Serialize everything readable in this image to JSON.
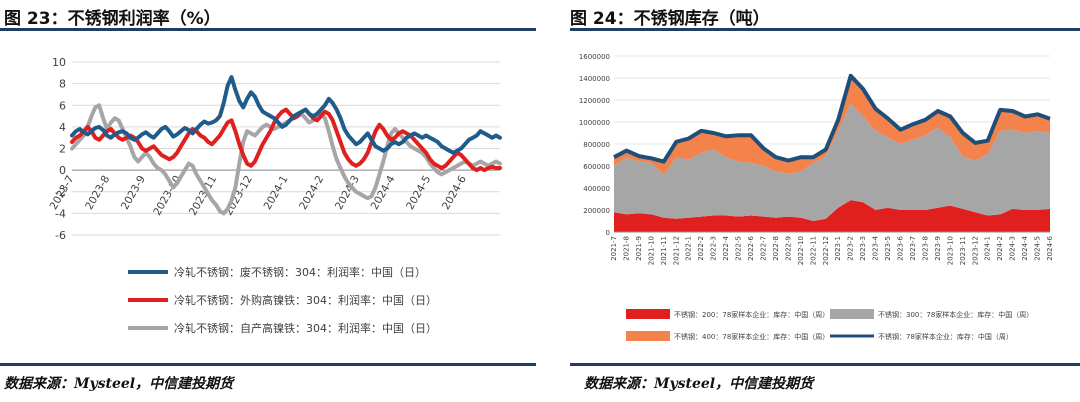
{
  "left": {
    "figure_title": "图 23：不锈钢利润率（%）",
    "source": "数据来源：Mysteel，中信建投期货"
  },
  "right": {
    "figure_title": "图 24：不锈钢库存（吨）",
    "source": "数据来源：Mysteel，中信建投期货"
  },
  "chart_data": [
    {
      "type": "line",
      "title": "",
      "ylim": [
        -6,
        10
      ],
      "yticks": [
        -6,
        -4,
        -2,
        0,
        2,
        4,
        6,
        8,
        10
      ],
      "xticks": [
        "2023-7",
        "2023-8",
        "2023-9",
        "2023-10",
        "2023-11",
        "2023-12",
        "2024-1",
        "2024-2",
        "2024-3",
        "2024-4",
        "2024-5",
        "2024-6"
      ],
      "grid": true,
      "legend_position": "bottom",
      "series": [
        {
          "name": "冷轧不锈钢：废不锈钢：304：利润率：中国（日）",
          "color": "#1f5c8b",
          "values": [
            3.2,
            3.6,
            3.8,
            3.5,
            3.3,
            3.6,
            3.9,
            4.0,
            3.7,
            3.2,
            3.0,
            3.3,
            3.5,
            3.6,
            3.4,
            3.0,
            2.8,
            3.0,
            3.3,
            3.5,
            3.2,
            3.0,
            3.4,
            3.8,
            4.0,
            3.6,
            3.1,
            3.3,
            3.6,
            3.9,
            3.7,
            3.4,
            3.8,
            4.2,
            4.5,
            4.3,
            4.4,
            4.6,
            5.0,
            6.2,
            7.8,
            8.6,
            7.4,
            6.4,
            5.8,
            6.6,
            7.2,
            6.8,
            6.0,
            5.4,
            5.2,
            5.0,
            4.8,
            4.4,
            4.0,
            4.2,
            4.6,
            5.0,
            5.2,
            5.4,
            5.6,
            5.2,
            5.0,
            5.2,
            5.6,
            6.0,
            6.6,
            6.2,
            5.6,
            4.8,
            3.8,
            3.2,
            2.8,
            2.4,
            2.6,
            3.0,
            3.4,
            2.8,
            2.2,
            2.0,
            1.8,
            2.0,
            2.4,
            2.6,
            2.4,
            2.6,
            3.0,
            3.2,
            3.4,
            3.2,
            3.0,
            3.2,
            3.0,
            2.8,
            2.6,
            2.2,
            2.0,
            1.8,
            1.6,
            1.8,
            2.0,
            2.4,
            2.8,
            3.0,
            3.2,
            3.6,
            3.4,
            3.2,
            3.0,
            3.2,
            3.0
          ]
        },
        {
          "name": "冷轧不锈钢：外购高镍铁：304：利润率：中国（日）",
          "color": "#e0201f",
          "values": [
            2.6,
            3.0,
            3.2,
            3.6,
            4.0,
            3.6,
            3.0,
            2.8,
            3.2,
            3.6,
            3.8,
            3.4,
            3.0,
            2.8,
            3.0,
            3.2,
            3.0,
            2.6,
            2.0,
            1.8,
            2.0,
            2.2,
            1.8,
            1.4,
            1.2,
            1.0,
            1.2,
            1.6,
            2.2,
            2.8,
            3.4,
            3.8,
            3.6,
            3.2,
            3.0,
            2.6,
            2.4,
            2.8,
            3.2,
            3.8,
            4.4,
            4.6,
            3.6,
            2.4,
            1.4,
            0.6,
            0.4,
            0.8,
            1.6,
            2.4,
            3.0,
            3.6,
            4.4,
            5.0,
            5.4,
            5.6,
            5.2,
            4.8,
            5.0,
            5.4,
            5.6,
            5.2,
            4.8,
            4.6,
            5.0,
            5.4,
            5.2,
            4.6,
            3.6,
            2.6,
            1.6,
            1.0,
            0.6,
            0.4,
            0.6,
            1.0,
            1.6,
            2.6,
            3.6,
            4.2,
            3.8,
            3.2,
            2.8,
            3.0,
            3.4,
            3.6,
            3.4,
            3.2,
            2.8,
            2.4,
            2.0,
            1.6,
            1.0,
            0.6,
            0.4,
            0.2,
            0.4,
            0.8,
            1.2,
            1.6,
            1.4,
            1.0,
            0.6,
            0.2,
            0.0,
            0.2,
            0.0,
            0.2,
            0.3,
            0.2,
            0.2
          ]
        },
        {
          "name": "冷轧不锈钢：自产高镍铁：304：利润率：中国（日）",
          "color": "#a6a6a6",
          "values": [
            2.0,
            2.4,
            2.8,
            3.2,
            4.0,
            5.0,
            5.8,
            6.0,
            4.8,
            3.8,
            4.4,
            4.8,
            4.6,
            3.8,
            3.0,
            2.2,
            1.2,
            0.8,
            1.2,
            1.6,
            1.2,
            0.6,
            0.2,
            0.0,
            -0.4,
            -1.0,
            -1.6,
            -1.2,
            -0.6,
            0.0,
            0.6,
            0.4,
            -0.4,
            -1.0,
            -1.6,
            -2.2,
            -2.8,
            -3.2,
            -3.8,
            -4.0,
            -3.6,
            -2.8,
            -1.6,
            0.6,
            2.6,
            3.6,
            3.4,
            3.2,
            3.6,
            4.0,
            4.2,
            4.0,
            3.8,
            4.0,
            4.2,
            4.4,
            4.6,
            4.8,
            5.0,
            5.2,
            4.8,
            4.4,
            4.6,
            5.0,
            5.2,
            4.8,
            3.6,
            2.2,
            1.0,
            0.2,
            -0.6,
            -1.2,
            -1.6,
            -2.0,
            -2.2,
            -2.4,
            -2.6,
            -2.4,
            -1.6,
            -0.4,
            0.8,
            2.2,
            3.4,
            3.8,
            3.4,
            3.0,
            2.6,
            2.2,
            2.0,
            1.8,
            1.6,
            1.2,
            0.6,
            0.2,
            -0.2,
            -0.4,
            -0.2,
            0.0,
            0.2,
            0.4,
            0.6,
            0.8,
            0.6,
            0.4,
            0.6,
            0.8,
            0.6,
            0.4,
            0.6,
            0.8,
            0.6
          ]
        }
      ]
    },
    {
      "type": "area",
      "title": "",
      "ylim": [
        0,
        1600000
      ],
      "yticks": [
        0,
        200000,
        400000,
        600000,
        800000,
        1000000,
        1200000,
        1400000,
        1600000
      ],
      "categories": [
        "2021-7",
        "2021-8",
        "2021-9",
        "2021-10",
        "2021-11",
        "2021-12",
        "2022-1",
        "2022-2",
        "2022-3",
        "2022-4",
        "2022-5",
        "2022-6",
        "2022-7",
        "2022-8",
        "2022-9",
        "2022-10",
        "2022-11",
        "2022-12",
        "2023-1",
        "2023-2",
        "2023-3",
        "2023-4",
        "2023-5",
        "2023-6",
        "2023-7",
        "2023-8",
        "2023-9",
        "2023-10",
        "2023-11",
        "2023-12",
        "2024-1",
        "2024-2",
        "2024-3",
        "2024-4",
        "2024-5",
        "2024-6"
      ],
      "grid": true,
      "legend_position": "bottom",
      "series": [
        {
          "name": "不锈钢：200：78家样本企业：库存：中国（周）",
          "color": "#e0201f",
          "values": [
            180000,
            160000,
            170000,
            160000,
            130000,
            120000,
            130000,
            140000,
            150000,
            150000,
            140000,
            150000,
            140000,
            130000,
            140000,
            130000,
            100000,
            120000,
            220000,
            290000,
            270000,
            200000,
            220000,
            200000,
            200000,
            200000,
            220000,
            240000,
            210000,
            180000,
            150000,
            160000,
            210000,
            200000,
            200000,
            210000
          ]
        },
        {
          "name": "不锈钢：300：78家样本企业：库存：中国（周）",
          "color": "#a6a6a6",
          "values": [
            420000,
            520000,
            470000,
            470000,
            390000,
            560000,
            530000,
            580000,
            600000,
            530000,
            500000,
            480000,
            460000,
            420000,
            390000,
            420000,
            530000,
            570000,
            700000,
            880000,
            780000,
            720000,
            640000,
            600000,
            640000,
            680000,
            730000,
            620000,
            480000,
            470000,
            560000,
            760000,
            720000,
            700000,
            720000,
            690000
          ]
        },
        {
          "name": "不锈钢：400：78家样本企业：库存：中国（周）",
          "color": "#f4824b",
          "values": [
            80000,
            60000,
            50000,
            40000,
            120000,
            140000,
            190000,
            200000,
            150000,
            190000,
            240000,
            250000,
            160000,
            130000,
            120000,
            130000,
            50000,
            60000,
            100000,
            250000,
            250000,
            200000,
            170000,
            130000,
            140000,
            140000,
            150000,
            190000,
            210000,
            160000,
            120000,
            190000,
            170000,
            150000,
            150000,
            130000
          ]
        }
      ],
      "total": {
        "name": "不锈钢：78家样本企业：库存：中国（周）",
        "color": "#1f4e79",
        "values": [
          680000,
          740000,
          690000,
          670000,
          640000,
          820000,
          850000,
          920000,
          900000,
          870000,
          880000,
          880000,
          760000,
          680000,
          650000,
          680000,
          680000,
          750000,
          1020000,
          1420000,
          1300000,
          1120000,
          1030000,
          930000,
          980000,
          1020000,
          1100000,
          1050000,
          900000,
          810000,
          830000,
          1110000,
          1100000,
          1050000,
          1070000,
          1030000
        ]
      }
    }
  ]
}
